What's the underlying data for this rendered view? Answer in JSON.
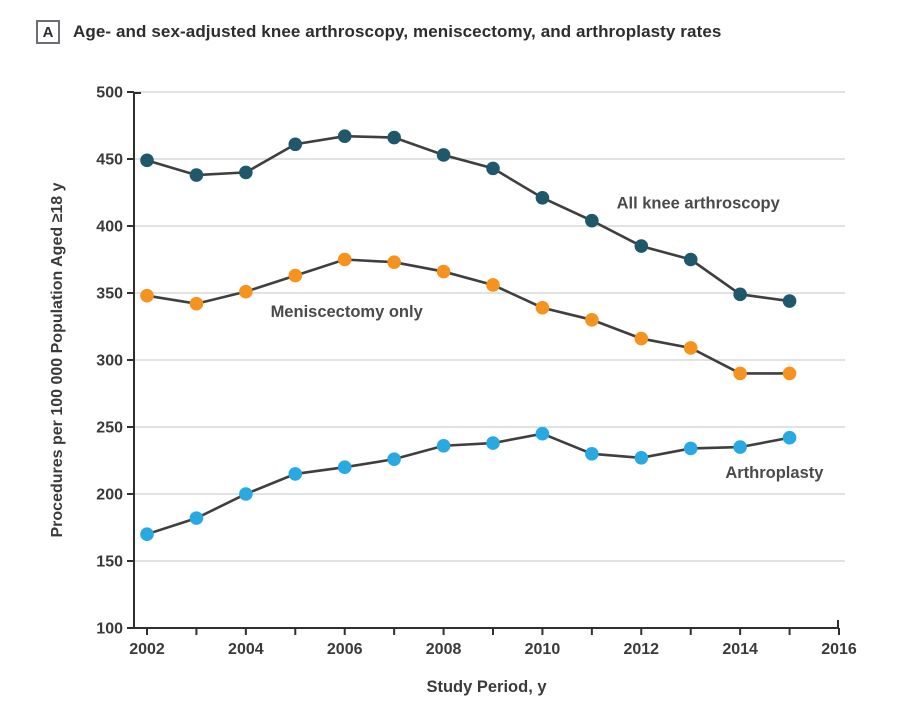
{
  "figure": {
    "panel_label": "A",
    "title": "Age- and sex-adjusted knee arthroscopy, meniscectomy, and arthroplasty rates"
  },
  "chart_data": {
    "type": "line",
    "x": [
      2002,
      2003,
      2004,
      2005,
      2006,
      2007,
      2008,
      2009,
      2010,
      2011,
      2012,
      2013,
      2014,
      2015
    ],
    "series": [
      {
        "name": "All knee arthroscopy",
        "color": "#20586b",
        "values": [
          449,
          438,
          440,
          461,
          467,
          466,
          453,
          443,
          421,
          404,
          385,
          375,
          349,
          344
        ],
        "label_anchor": {
          "x": 2011.5,
          "y": 413
        }
      },
      {
        "name": "Meniscectomy only",
        "color": "#f6921e",
        "values": [
          348,
          342,
          351,
          363,
          375,
          373,
          366,
          356,
          339,
          330,
          316,
          309,
          290,
          290
        ],
        "label_anchor": {
          "x": 2004.5,
          "y": 332
        }
      },
      {
        "name": "Arthroplasty",
        "color": "#29a9e1",
        "values": [
          170,
          182,
          200,
          215,
          220,
          226,
          236,
          238,
          245,
          230,
          227,
          234,
          235,
          242
        ],
        "label_anchor": {
          "x": 2013.7,
          "y": 212
        }
      }
    ],
    "title": "Age- and sex-adjusted knee arthroscopy, meniscectomy, and arthroplasty rates",
    "xlabel": "Study Period, y",
    "ylabel": "Procedures per 100 000 Population Aged ≥18 y",
    "ylim": [
      100,
      500
    ],
    "ytick_step": 50,
    "xlim": [
      2002,
      2016
    ],
    "xticks_labeled": [
      2002,
      2004,
      2006,
      2008,
      2010,
      2012,
      2014,
      2016
    ],
    "xticks_minor_every": 1,
    "grid": true,
    "legend_position": "inline-labels",
    "line_color": "#3f3f3f",
    "grid_color": "#cdd1d4",
    "axis_color": "#2f2f2f",
    "text_color": "#3a3a3a",
    "label_color": "#4a4a4a"
  }
}
